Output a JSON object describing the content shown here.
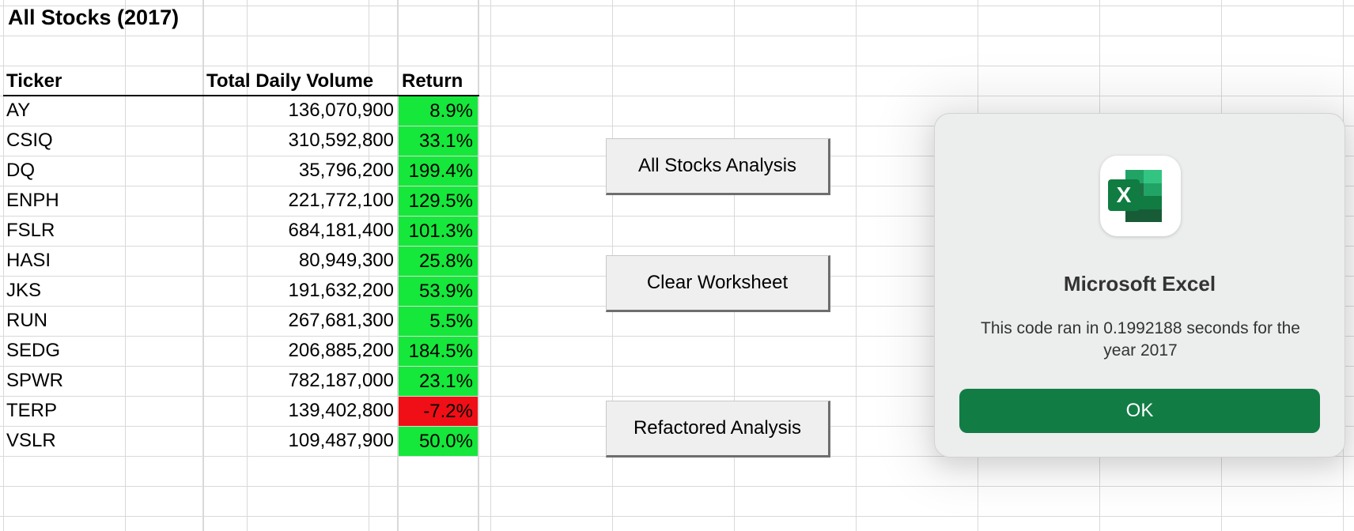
{
  "sheet": {
    "title": "All Stocks (2017)",
    "headers": {
      "ticker": "Ticker",
      "volume": "Total Daily Volume",
      "return": "Return"
    },
    "rows": [
      {
        "ticker": "AY",
        "volume": "136,070,900",
        "return": "8.9%",
        "status": "positive"
      },
      {
        "ticker": "CSIQ",
        "volume": "310,592,800",
        "return": "33.1%",
        "status": "positive"
      },
      {
        "ticker": "DQ",
        "volume": "35,796,200",
        "return": "199.4%",
        "status": "positive"
      },
      {
        "ticker": "ENPH",
        "volume": "221,772,100",
        "return": "129.5%",
        "status": "positive"
      },
      {
        "ticker": "FSLR",
        "volume": "684,181,400",
        "return": "101.3%",
        "status": "positive"
      },
      {
        "ticker": "HASI",
        "volume": "80,949,300",
        "return": "25.8%",
        "status": "positive"
      },
      {
        "ticker": "JKS",
        "volume": "191,632,200",
        "return": "53.9%",
        "status": "positive"
      },
      {
        "ticker": "RUN",
        "volume": "267,681,300",
        "return": "5.5%",
        "status": "positive"
      },
      {
        "ticker": "SEDG",
        "volume": "206,885,200",
        "return": "184.5%",
        "status": "positive"
      },
      {
        "ticker": "SPWR",
        "volume": "782,187,000",
        "return": "23.1%",
        "status": "positive"
      },
      {
        "ticker": "TERP",
        "volume": "139,402,800",
        "return": "-7.2%",
        "status": "negative"
      },
      {
        "ticker": "VSLR",
        "volume": "109,487,900",
        "return": "50.0%",
        "status": "positive"
      }
    ],
    "colors": {
      "positive": "#16e73b",
      "negative": "#f00f16"
    }
  },
  "buttons": {
    "all_stocks": "All Stocks Analysis",
    "clear": "Clear Worksheet",
    "refactored": "Refactored Analysis"
  },
  "dialog": {
    "app_icon": "excel-app-icon",
    "icon_letter": "X",
    "title": "Microsoft Excel",
    "message": "This code ran in 0.1992188 seconds for the year 2017",
    "ok_label": "OK",
    "ok_color": "#127c45"
  }
}
